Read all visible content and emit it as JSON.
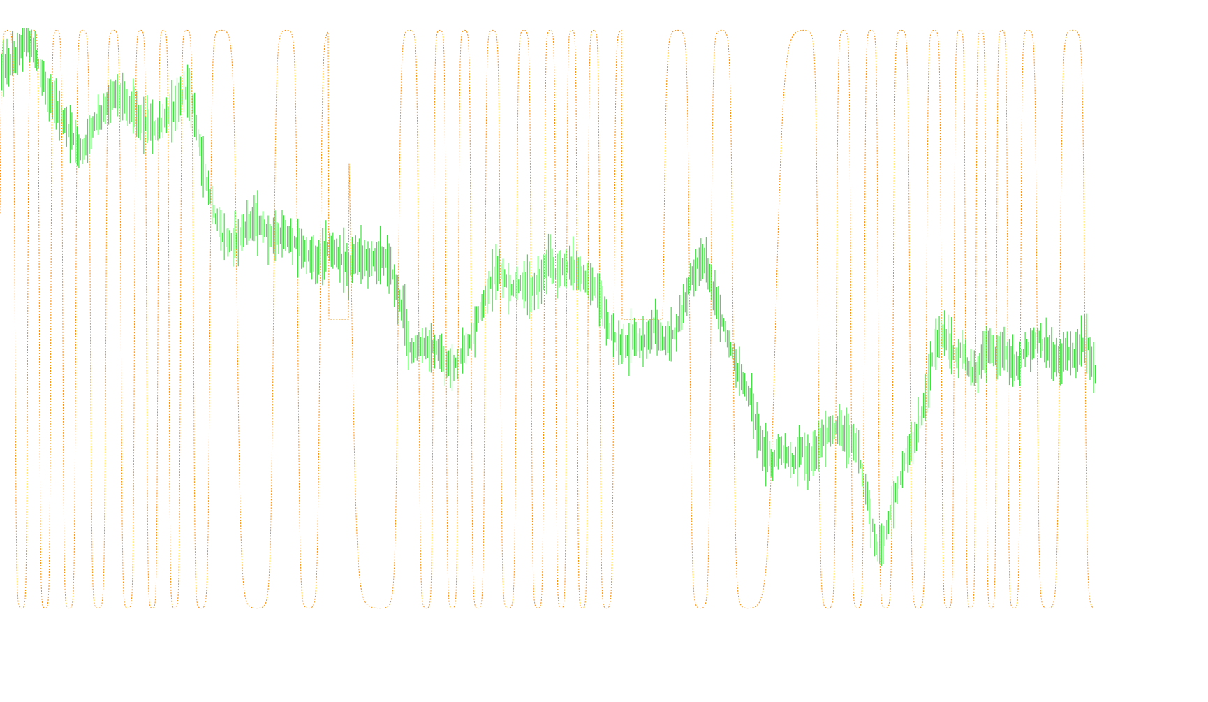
{
  "chart_data": {
    "type": "line",
    "title": "",
    "xlabel": "",
    "ylabel": "",
    "grid": false,
    "legend": "none",
    "ylim": [
      0,
      1
    ],
    "series": [
      {
        "key": "price",
        "style": "bar-ticks",
        "color": "#3fe23f",
        "points": [
          [
            0,
            0.93
          ],
          [
            8,
            0.95
          ],
          [
            14,
            0.99
          ],
          [
            20,
            0.95
          ],
          [
            26,
            0.89
          ],
          [
            32,
            0.86
          ],
          [
            36,
            0.84
          ],
          [
            40,
            0.82
          ],
          [
            46,
            0.79
          ],
          [
            52,
            0.84
          ],
          [
            58,
            0.86
          ],
          [
            64,
            0.89
          ],
          [
            70,
            0.88
          ],
          [
            76,
            0.86
          ],
          [
            82,
            0.84
          ],
          [
            88,
            0.83
          ],
          [
            94,
            0.85
          ],
          [
            100,
            0.87
          ],
          [
            106,
            0.9
          ],
          [
            110,
            0.86
          ],
          [
            114,
            0.78
          ],
          [
            118,
            0.73
          ],
          [
            122,
            0.68
          ],
          [
            126,
            0.65
          ],
          [
            132,
            0.64
          ],
          [
            138,
            0.66
          ],
          [
            144,
            0.68
          ],
          [
            150,
            0.66
          ],
          [
            156,
            0.65
          ],
          [
            162,
            0.65
          ],
          [
            168,
            0.64
          ],
          [
            174,
            0.62
          ],
          [
            180,
            0.61
          ],
          [
            186,
            0.63
          ],
          [
            192,
            0.62
          ],
          [
            198,
            0.6
          ],
          [
            204,
            0.62
          ],
          [
            210,
            0.61
          ],
          [
            216,
            0.62
          ],
          [
            222,
            0.6
          ],
          [
            226,
            0.55
          ],
          [
            230,
            0.52
          ],
          [
            232,
            0.47
          ],
          [
            236,
            0.46
          ],
          [
            242,
            0.47
          ],
          [
            248,
            0.46
          ],
          [
            252,
            0.44
          ],
          [
            256,
            0.43
          ],
          [
            262,
            0.45
          ],
          [
            268,
            0.48
          ],
          [
            272,
            0.52
          ],
          [
            276,
            0.55
          ],
          [
            280,
            0.58
          ],
          [
            284,
            0.6
          ],
          [
            290,
            0.56
          ],
          [
            296,
            0.57
          ],
          [
            302,
            0.56
          ],
          [
            308,
            0.58
          ],
          [
            312,
            0.61
          ],
          [
            316,
            0.59
          ],
          [
            320,
            0.6
          ],
          [
            326,
            0.6
          ],
          [
            332,
            0.58
          ],
          [
            338,
            0.57
          ],
          [
            342,
            0.54
          ],
          [
            346,
            0.5
          ],
          [
            350,
            0.48
          ],
          [
            354,
            0.46
          ],
          [
            360,
            0.48
          ],
          [
            366,
            0.47
          ],
          [
            372,
            0.5
          ],
          [
            378,
            0.47
          ],
          [
            384,
            0.49
          ],
          [
            388,
            0.52
          ],
          [
            392,
            0.57
          ],
          [
            396,
            0.6
          ],
          [
            400,
            0.62
          ],
          [
            404,
            0.58
          ],
          [
            408,
            0.54
          ],
          [
            412,
            0.5
          ],
          [
            416,
            0.46
          ],
          [
            420,
            0.43
          ],
          [
            424,
            0.4
          ],
          [
            428,
            0.37
          ],
          [
            432,
            0.32
          ],
          [
            436,
            0.29
          ],
          [
            440,
            0.27
          ],
          [
            444,
            0.3
          ],
          [
            448,
            0.28
          ],
          [
            452,
            0.27
          ],
          [
            456,
            0.3
          ],
          [
            460,
            0.27
          ],
          [
            464,
            0.29
          ],
          [
            468,
            0.31
          ],
          [
            472,
            0.32
          ],
          [
            476,
            0.33
          ],
          [
            480,
            0.32
          ],
          [
            484,
            0.31
          ],
          [
            488,
            0.3
          ],
          [
            492,
            0.24
          ],
          [
            496,
            0.18
          ],
          [
            500,
            0.12
          ],
          [
            504,
            0.15
          ],
          [
            508,
            0.2
          ],
          [
            512,
            0.24
          ],
          [
            516,
            0.28
          ],
          [
            520,
            0.3
          ],
          [
            524,
            0.34
          ],
          [
            528,
            0.4
          ],
          [
            532,
            0.46
          ],
          [
            536,
            0.49
          ],
          [
            540,
            0.47
          ],
          [
            544,
            0.45
          ],
          [
            548,
            0.46
          ],
          [
            552,
            0.43
          ],
          [
            556,
            0.42
          ],
          [
            560,
            0.45
          ],
          [
            564,
            0.47
          ],
          [
            568,
            0.44
          ],
          [
            572,
            0.46
          ],
          [
            576,
            0.45
          ],
          [
            580,
            0.43
          ],
          [
            584,
            0.46
          ],
          [
            588,
            0.47
          ],
          [
            592,
            0.48
          ],
          [
            596,
            0.46
          ],
          [
            600,
            0.45
          ],
          [
            604,
            0.44
          ],
          [
            608,
            0.46
          ],
          [
            612,
            0.45
          ],
          [
            616,
            0.47
          ],
          [
            620,
            0.47
          ],
          [
            624,
            0.42
          ]
        ]
      },
      {
        "key": "oscillator",
        "style": "dotted",
        "color": "#ff8c00",
        "ylim": [
          0,
          1
        ]
      }
    ]
  }
}
